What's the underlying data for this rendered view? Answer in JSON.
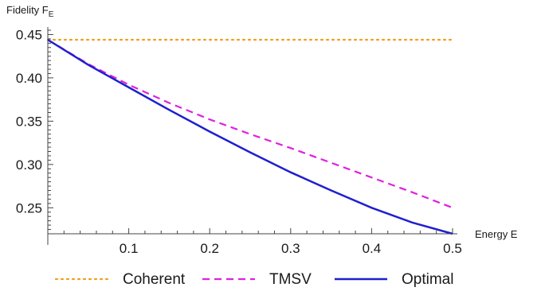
{
  "chart_data": {
    "type": "line",
    "xlabel": "Energy E",
    "ylabel_main": "Fidelity F",
    "ylabel_sub": "E",
    "xlim": [
      0,
      0.5
    ],
    "ylim": [
      0.22,
      0.455
    ],
    "x_ticks": [
      0.1,
      0.2,
      0.3,
      0.4,
      0.5
    ],
    "x_tick_labels": [
      "0.1",
      "0.2",
      "0.3",
      "0.4",
      "0.5"
    ],
    "y_ticks": [
      0.25,
      0.3,
      0.35,
      0.4,
      0.45
    ],
    "y_tick_labels": [
      "0.25",
      "0.30",
      "0.35",
      "0.40",
      "0.45"
    ],
    "grid": false,
    "legend_position": "bottom",
    "series": [
      {
        "name": "Coherent",
        "color": "#f0a020",
        "style": "dotted",
        "x": [
          0,
          0.1,
          0.2,
          0.3,
          0.4,
          0.5
        ],
        "y": [
          0.444,
          0.444,
          0.444,
          0.444,
          0.444,
          0.444
        ]
      },
      {
        "name": "TMSV",
        "color": "#e020e0",
        "style": "dashed",
        "x": [
          0,
          0.05,
          0.1,
          0.15,
          0.2,
          0.25,
          0.3,
          0.35,
          0.4,
          0.45,
          0.5
        ],
        "y": [
          0.444,
          0.416,
          0.392,
          0.371,
          0.352,
          0.335,
          0.319,
          0.302,
          0.285,
          0.268,
          0.25
        ]
      },
      {
        "name": "Optimal",
        "color": "#1f1fd0",
        "style": "solid",
        "x": [
          0,
          0.05,
          0.1,
          0.15,
          0.2,
          0.25,
          0.3,
          0.35,
          0.4,
          0.45,
          0.5
        ],
        "y": [
          0.444,
          0.415,
          0.389,
          0.363,
          0.338,
          0.314,
          0.291,
          0.27,
          0.25,
          0.233,
          0.22
        ]
      }
    ]
  }
}
